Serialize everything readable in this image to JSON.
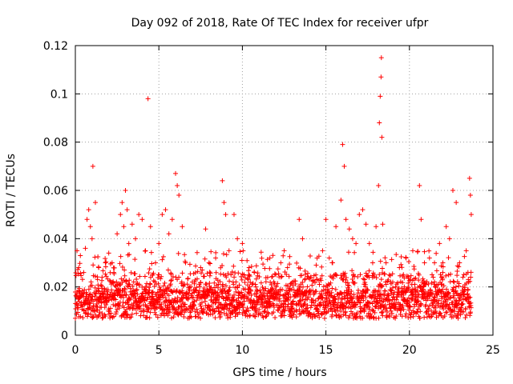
{
  "chart_data": {
    "type": "scatter",
    "title": "Day 092 of 2018, Rate Of TEC Index for receiver ufpr",
    "xlabel": "GPS time / hours",
    "ylabel": "ROTI / TECUs",
    "xlim": [
      0,
      25
    ],
    "ylim": [
      0,
      0.12
    ],
    "xticks": [
      0,
      5,
      10,
      15,
      20,
      25
    ],
    "yticks": [
      0,
      0.02,
      0.04,
      0.06,
      0.08,
      0.1,
      0.12
    ],
    "xtick_labels": [
      "0",
      "5",
      "10",
      "15",
      "20",
      "25"
    ],
    "ytick_labels": [
      "0",
      "0.02",
      "0.04",
      "0.06",
      "0.08",
      "0.1",
      "0.12"
    ],
    "grid": true,
    "marker": "+",
    "color": "#ff0000",
    "series": [
      {
        "name": "ROTI",
        "points": [
          [
            0.1,
            0.035
          ],
          [
            0.2,
            0.028
          ],
          [
            0.3,
            0.033
          ],
          [
            0.5,
            0.026
          ],
          [
            0.6,
            0.036
          ],
          [
            0.7,
            0.048
          ],
          [
            0.8,
            0.052
          ],
          [
            0.9,
            0.045
          ],
          [
            1.0,
            0.04
          ],
          [
            1.05,
            0.07
          ],
          [
            1.2,
            0.055
          ],
          [
            1.4,
            0.028
          ],
          [
            1.6,
            0.024
          ],
          [
            1.8,
            0.03
          ],
          [
            2.0,
            0.034
          ],
          [
            2.2,
            0.03
          ],
          [
            2.5,
            0.042
          ],
          [
            2.7,
            0.05
          ],
          [
            2.8,
            0.055
          ],
          [
            2.9,
            0.045
          ],
          [
            3.0,
            0.06
          ],
          [
            3.1,
            0.052
          ],
          [
            3.2,
            0.038
          ],
          [
            3.4,
            0.046
          ],
          [
            3.6,
            0.04
          ],
          [
            3.8,
            0.05
          ],
          [
            4.0,
            0.048
          ],
          [
            4.2,
            0.035
          ],
          [
            4.35,
            0.098
          ],
          [
            4.5,
            0.045
          ],
          [
            4.8,
            0.03
          ],
          [
            5.0,
            0.038
          ],
          [
            5.2,
            0.05
          ],
          [
            5.4,
            0.052
          ],
          [
            5.6,
            0.042
          ],
          [
            5.8,
            0.048
          ],
          [
            6.0,
            0.067
          ],
          [
            6.1,
            0.062
          ],
          [
            6.2,
            0.058
          ],
          [
            6.4,
            0.045
          ],
          [
            6.6,
            0.03
          ],
          [
            7.0,
            0.022
          ],
          [
            7.5,
            0.028
          ],
          [
            7.8,
            0.044
          ],
          [
            8.0,
            0.03
          ],
          [
            8.4,
            0.032
          ],
          [
            8.8,
            0.064
          ],
          [
            8.9,
            0.055
          ],
          [
            9.0,
            0.05
          ],
          [
            9.2,
            0.035
          ],
          [
            9.5,
            0.05
          ],
          [
            9.7,
            0.04
          ],
          [
            10.0,
            0.038
          ],
          [
            10.4,
            0.028
          ],
          [
            10.8,
            0.02
          ],
          [
            11.2,
            0.016
          ],
          [
            11.6,
            0.014
          ],
          [
            12.0,
            0.018
          ],
          [
            12.3,
            0.03
          ],
          [
            12.5,
            0.035
          ],
          [
            12.7,
            0.028
          ],
          [
            13.0,
            0.022
          ],
          [
            13.4,
            0.048
          ],
          [
            13.6,
            0.04
          ],
          [
            14.0,
            0.018
          ],
          [
            14.4,
            0.025
          ],
          [
            14.8,
            0.035
          ],
          [
            15.0,
            0.048
          ],
          [
            15.2,
            0.032
          ],
          [
            15.4,
            0.03
          ],
          [
            15.6,
            0.045
          ],
          [
            15.9,
            0.056
          ],
          [
            16.0,
            0.079
          ],
          [
            16.1,
            0.07
          ],
          [
            16.2,
            0.048
          ],
          [
            16.4,
            0.044
          ],
          [
            16.6,
            0.04
          ],
          [
            16.8,
            0.038
          ],
          [
            17.0,
            0.05
          ],
          [
            17.2,
            0.052
          ],
          [
            17.4,
            0.046
          ],
          [
            17.6,
            0.038
          ],
          [
            17.8,
            0.03
          ],
          [
            18.0,
            0.045
          ],
          [
            18.15,
            0.062
          ],
          [
            18.2,
            0.088
          ],
          [
            18.25,
            0.099
          ],
          [
            18.3,
            0.107
          ],
          [
            18.32,
            0.115
          ],
          [
            18.35,
            0.082
          ],
          [
            18.4,
            0.046
          ],
          [
            18.6,
            0.03
          ],
          [
            18.8,
            0.025
          ],
          [
            19.0,
            0.022
          ],
          [
            19.4,
            0.028
          ],
          [
            19.8,
            0.032
          ],
          [
            20.2,
            0.035
          ],
          [
            20.6,
            0.062
          ],
          [
            20.7,
            0.048
          ],
          [
            20.9,
            0.03
          ],
          [
            21.2,
            0.032
          ],
          [
            21.5,
            0.03
          ],
          [
            21.8,
            0.038
          ],
          [
            22.0,
            0.03
          ],
          [
            22.2,
            0.045
          ],
          [
            22.4,
            0.04
          ],
          [
            22.6,
            0.06
          ],
          [
            22.8,
            0.055
          ],
          [
            23.0,
            0.03
          ],
          [
            23.2,
            0.02
          ],
          [
            23.4,
            0.035
          ],
          [
            23.6,
            0.065
          ],
          [
            23.65,
            0.058
          ],
          [
            23.7,
            0.05
          ]
        ]
      }
    ]
  }
}
